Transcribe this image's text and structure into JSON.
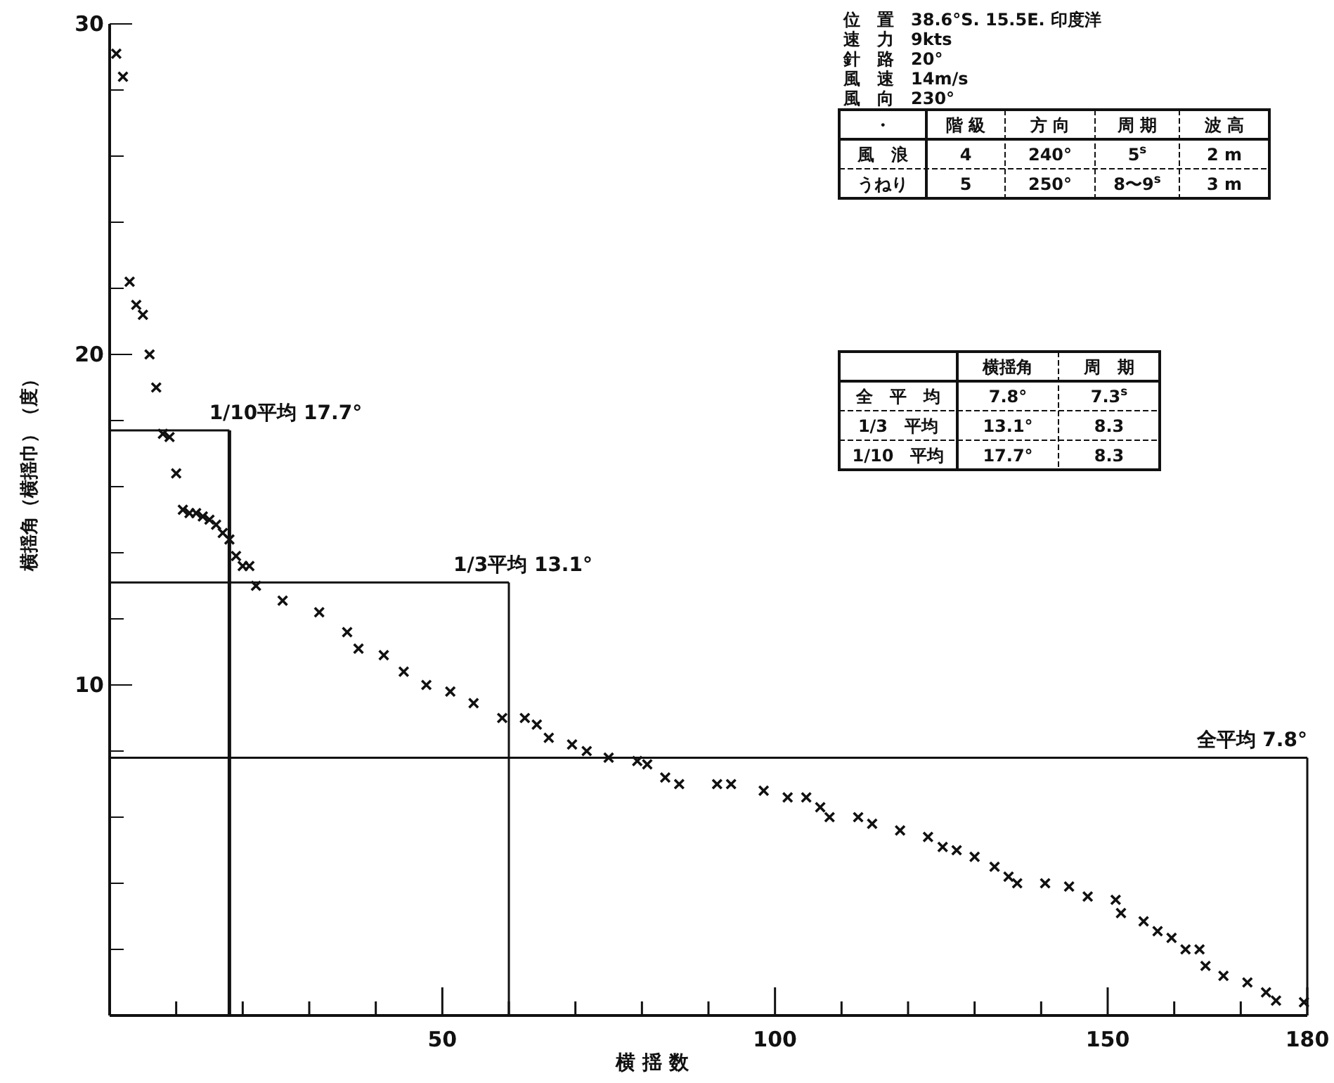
{
  "chart_data": {
    "type": "scatter",
    "xlabel": "横 揺 数",
    "ylabel": "横揺角（横揺巾）（度）",
    "marker": "cross",
    "xlim": [
      0,
      180
    ],
    "ylim": [
      0,
      30
    ],
    "xticks": [
      {
        "value": 10,
        "label": null
      },
      {
        "value": 20,
        "label": null
      },
      {
        "value": 30,
        "label": null
      },
      {
        "value": 40,
        "label": null
      },
      50,
      {
        "value": 60,
        "label": null
      },
      {
        "value": 70,
        "label": null
      },
      {
        "value": 80,
        "label": null
      },
      {
        "value": 90,
        "label": null
      },
      100,
      {
        "value": 110,
        "label": null
      },
      {
        "value": 120,
        "label": null
      },
      {
        "value": 130,
        "label": null
      },
      {
        "value": 140,
        "label": null
      },
      150,
      {
        "value": 160,
        "label": null
      },
      {
        "value": 170,
        "label": null
      },
      180
    ],
    "yticks": [
      {
        "value": 2,
        "label": null
      },
      {
        "value": 4,
        "label": null
      },
      {
        "value": 6,
        "label": null
      },
      {
        "value": 8,
        "label": null
      },
      10,
      {
        "value": 12,
        "label": null
      },
      {
        "value": 14,
        "label": null
      },
      {
        "value": 16,
        "label": null
      },
      {
        "value": 18,
        "label": null
      },
      20,
      {
        "value": 22,
        "label": null
      },
      {
        "value": 24,
        "label": null
      },
      {
        "value": 26,
        "label": null
      },
      {
        "value": 28,
        "label": null
      },
      30
    ],
    "series": [
      {
        "color": "#111111",
        "x": [
          1,
          2,
          3,
          4,
          5,
          6,
          7,
          8,
          9,
          10,
          11,
          12,
          13,
          14,
          15,
          16,
          17,
          18,
          19,
          20,
          21,
          22,
          26,
          31.5,
          35.7,
          37.4,
          41.2,
          44.2,
          47.6,
          51.2,
          54.7,
          59,
          62.4,
          64.2,
          66,
          69.5,
          71.7,
          75,
          79.3,
          80.8,
          83.5,
          85.6,
          91.3,
          93.4,
          98.3,
          101.9,
          104.7,
          106.8,
          108.2,
          112.5,
          114.6,
          118.8,
          123,
          125.2,
          127.3,
          130,
          133,
          135.1,
          136.4,
          140.6,
          144.2,
          147,
          151.2,
          152,
          155.4,
          157.5,
          159.6,
          161.7,
          163.8,
          164.7,
          167.4,
          171,
          173.8,
          175.3,
          179.5
        ],
        "values": [
          29.1,
          28.4,
          22.2,
          21.5,
          21.2,
          20.0,
          19.0,
          17.6,
          17.5,
          16.4,
          15.3,
          15.2,
          15.2,
          15.1,
          15.0,
          14.85,
          14.6,
          14.4,
          13.9,
          13.6,
          13.6,
          13.0,
          12.55,
          12.2,
          11.6,
          11.1,
          10.9,
          10.4,
          10.0,
          9.8,
          9.45,
          9.0,
          9.0,
          8.8,
          8.4,
          8.2,
          8.0,
          7.8,
          7.7,
          7.6,
          7.2,
          7.0,
          7.0,
          7.0,
          6.8,
          6.6,
          6.6,
          6.3,
          6.0,
          6.0,
          5.8,
          5.6,
          5.4,
          5.1,
          5.0,
          4.8,
          4.5,
          4.2,
          4.0,
          4.0,
          3.9,
          3.6,
          3.5,
          3.1,
          2.85,
          2.55,
          2.35,
          2.0,
          2.0,
          1.5,
          1.2,
          1.0,
          0.7,
          0.45,
          0.4
        ]
      }
    ],
    "ref_lines": [
      {
        "axis": "y",
        "value": 17.7,
        "label": "1/10平均 17.7°"
      },
      {
        "axis": "y",
        "value": 13.1,
        "label": "1/3平均 13.1°"
      },
      {
        "axis": "y",
        "value": 7.8,
        "label": "全平均 7.8°"
      },
      {
        "axis": "x",
        "value": 18
      },
      {
        "axis": "x",
        "value": 60
      },
      {
        "axis": "x",
        "value": 180
      }
    ],
    "annotations": [
      "位　置　38.6°S. 15.5E. 印度洋",
      "速　力　9kts",
      "針　路　20°",
      "風　速　14m/s",
      "風　向　230°",
      "・\t階 級\t方 向\t周 期\t波 高",
      "風　浪\t4\t240°\t5$^{s}$\t2 m",
      "うねり\t5\t250°\t8〜9$^{s}$\t3 m",
      "\t横揺角\t周　期",
      "全　平　均\t7.8°\t7.3$^{s}$",
      "1/3　平均\t13.1°\t8.3",
      "1/10　平均\t17.7°\t8.3"
    ]
  }
}
